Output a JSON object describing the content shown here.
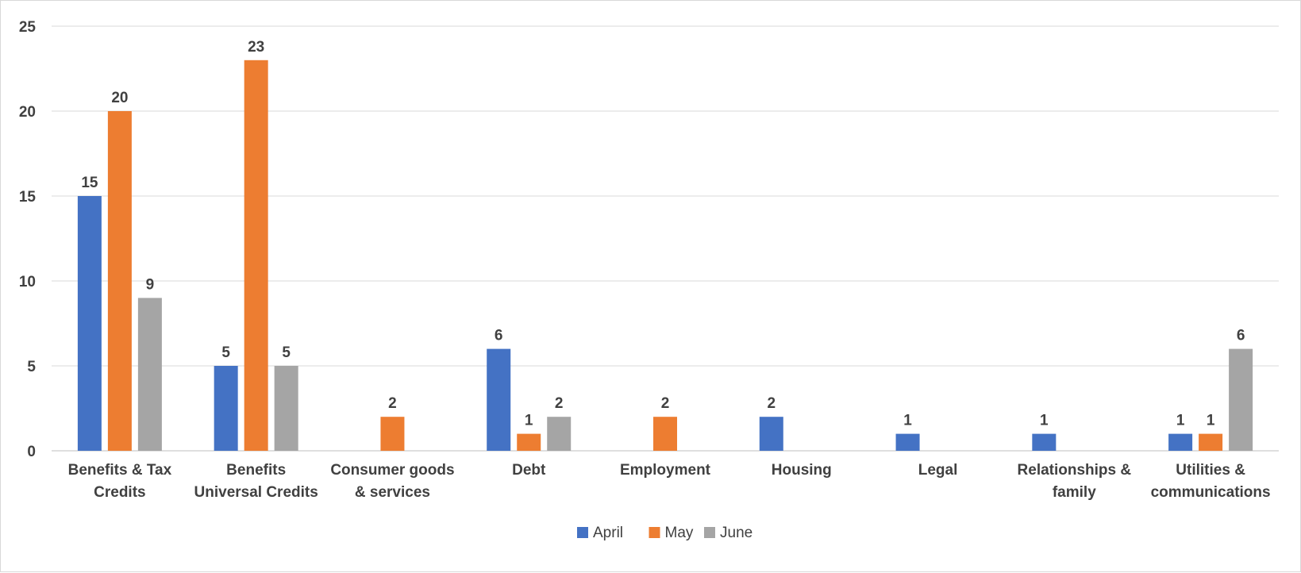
{
  "chart_data": {
    "type": "bar",
    "title": "",
    "xlabel": "",
    "ylabel": "",
    "ylim": [
      0,
      25
    ],
    "yticks": [
      0,
      5,
      10,
      15,
      20,
      25
    ],
    "grid": true,
    "legend_position": "bottom",
    "categories": [
      [
        "Benefits & Tax",
        "Credits"
      ],
      [
        "Benefits",
        "Universal Credits"
      ],
      [
        "Consumer goods",
        "& services"
      ],
      [
        "Debt"
      ],
      [
        "Employment"
      ],
      [
        "Housing"
      ],
      [
        "Legal"
      ],
      [
        "Relationships &",
        "family"
      ],
      [
        "Utilities &",
        "communications"
      ]
    ],
    "series": [
      {
        "name": "April",
        "color": "#4472c4",
        "values": [
          15,
          5,
          null,
          6,
          null,
          2,
          1,
          1,
          1
        ]
      },
      {
        "name": "May",
        "color": "#ed7d31",
        "values": [
          20,
          23,
          2,
          1,
          2,
          null,
          null,
          null,
          1
        ]
      },
      {
        "name": "June",
        "color": "#a5a5a5",
        "values": [
          9,
          5,
          null,
          2,
          null,
          null,
          null,
          null,
          6
        ]
      }
    ]
  }
}
